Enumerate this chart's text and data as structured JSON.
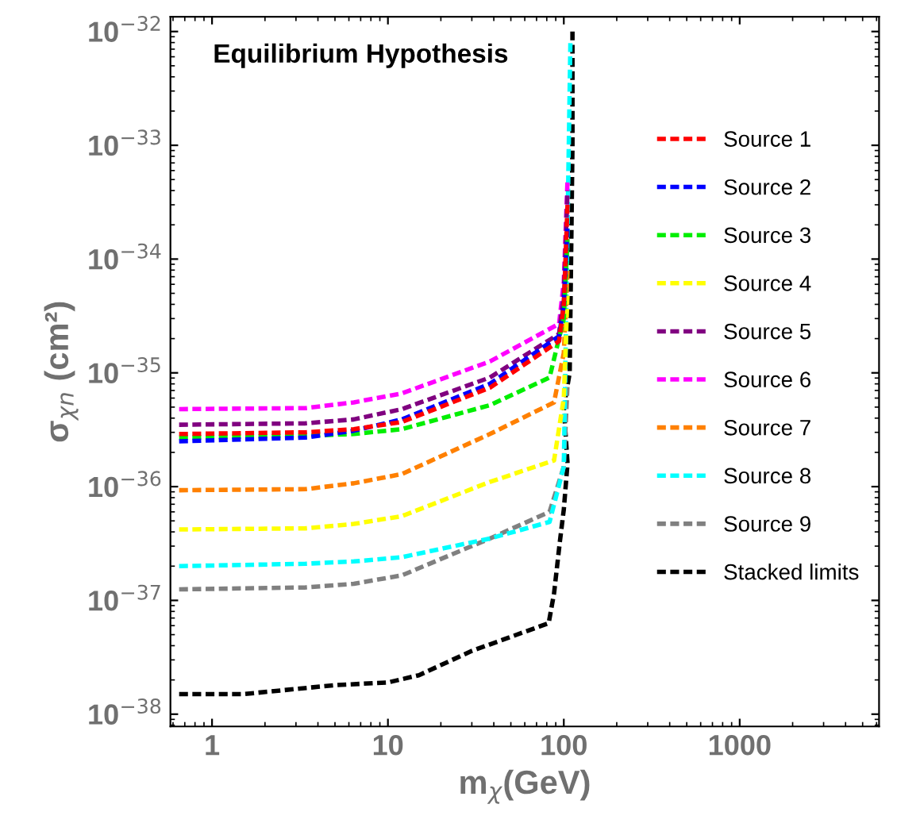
{
  "chart_data": {
    "type": "line",
    "title": "Equilibrium Hypothesis",
    "xlabel": "m$_{χ}$(GeV)",
    "ylabel": "σ$_{χn}$ (cm²)",
    "log": "xy",
    "xlim": [
      0.58,
      6200
    ],
    "ylim": [
      7.8e-39,
      1.35e-32
    ],
    "xticks": [
      1,
      10,
      100,
      1000
    ],
    "yticks": [
      {
        "value": 1e-38,
        "label": "10$^{−38}$"
      },
      {
        "value": 1e-37,
        "label": "10$^{−37}$"
      },
      {
        "value": 1e-36,
        "label": "10$^{−36}$"
      },
      {
        "value": 1e-35,
        "label": "10$^{−35}$"
      },
      {
        "value": 1e-34,
        "label": "10$^{−34}$"
      },
      {
        "value": 1e-33,
        "label": "10$^{−33}$"
      },
      {
        "value": 1e-32,
        "label": "10$^{−32}$"
      }
    ],
    "grid": false,
    "legend": "right",
    "line_style": "dashed",
    "marker": "none",
    "series": [
      {
        "name": "Source 1",
        "color": "#ff0000",
        "x": [
          0.65,
          3.4,
          6.4,
          12,
          38,
          94,
          100,
          105
        ],
        "values": [
          2.9e-36,
          3e-36,
          3.2e-36,
          3.7e-36,
          7.4e-36,
          1.9e-35,
          4e-35,
          3e-34
        ]
      },
      {
        "name": "Source 2",
        "color": "#0000ff",
        "x": [
          0.65,
          3.4,
          6.4,
          12,
          38,
          94,
          100,
          105
        ],
        "values": [
          2.5e-36,
          2.7e-36,
          3.1e-36,
          3.9e-36,
          8e-36,
          2.1e-35,
          4e-35,
          2e-34
        ]
      },
      {
        "name": "Source 3",
        "color": "#00ee00",
        "x": [
          0.65,
          3.4,
          6.4,
          12,
          38,
          83,
          100,
          105
        ],
        "values": [
          2.7e-36,
          2.8e-36,
          2.9e-36,
          3.2e-36,
          5.2e-36,
          9.1e-36,
          3e-35,
          1.5e-34
        ]
      },
      {
        "name": "Source 4",
        "color": "#ffff00",
        "x": [
          0.65,
          3.4,
          6.4,
          12,
          38,
          88,
          100,
          105
        ],
        "values": [
          4.2e-37,
          4.3e-37,
          4.7e-37,
          5.5e-37,
          1.1e-36,
          1.7e-36,
          6e-36,
          5e-35
        ]
      },
      {
        "name": "Source 5",
        "color": "#800080",
        "x": [
          0.65,
          3.4,
          6.4,
          12,
          38,
          94,
          100,
          105
        ],
        "values": [
          3.5e-36,
          3.6e-36,
          3.9e-36,
          4.8e-36,
          9.1e-36,
          2.2e-35,
          5e-35,
          4e-34
        ]
      },
      {
        "name": "Source 6",
        "color": "#ff00ff",
        "x": [
          0.65,
          3.4,
          6.4,
          12,
          38,
          94,
          100,
          105
        ],
        "values": [
          4.8e-36,
          4.9e-36,
          5.5e-36,
          6.6e-36,
          1.26e-35,
          2.7e-35,
          6.3e-35,
          5e-34
        ]
      },
      {
        "name": "Source 7",
        "color": "#ff8000",
        "x": [
          0.65,
          3.4,
          6.4,
          12,
          38,
          88,
          100,
          105
        ],
        "values": [
          9.3e-37,
          9.5e-37,
          1.07e-36,
          1.29e-36,
          2.9e-36,
          5.5e-36,
          1.5e-35,
          8e-35
        ]
      },
      {
        "name": "Source 8",
        "color": "#00ffff",
        "x": [
          0.65,
          3.4,
          6.4,
          12,
          38,
          83,
          100,
          109
        ],
        "values": [
          2e-37,
          2.1e-37,
          2.2e-37,
          2.4e-37,
          3.5e-37,
          4.9e-37,
          1.5e-36,
          8e-33
        ]
      },
      {
        "name": "Source 9",
        "color": "#808080",
        "x": [
          0.65,
          3.4,
          6.4,
          12,
          38,
          83,
          100,
          105
        ],
        "values": [
          1.25e-37,
          1.3e-37,
          1.4e-37,
          1.66e-37,
          3.5e-37,
          6e-37,
          1.5e-36,
          8e-36
        ]
      },
      {
        "name": "Stacked limits",
        "color": "#000000",
        "x": [
          0.65,
          1.5,
          5,
          10,
          15,
          30,
          82,
          88,
          95,
          100,
          105,
          100,
          108,
          110,
          112,
          112
        ],
        "values": [
          1.5e-38,
          1.5e-38,
          1.8e-38,
          1.9e-38,
          2.2e-38,
          3.6e-38,
          6.3e-38,
          1.15e-37,
          3.3e-37,
          6.3e-37,
          1.6e-36,
          5e-36,
          1e-35,
          1e-34,
          1e-33,
          1e-32
        ]
      }
    ]
  }
}
